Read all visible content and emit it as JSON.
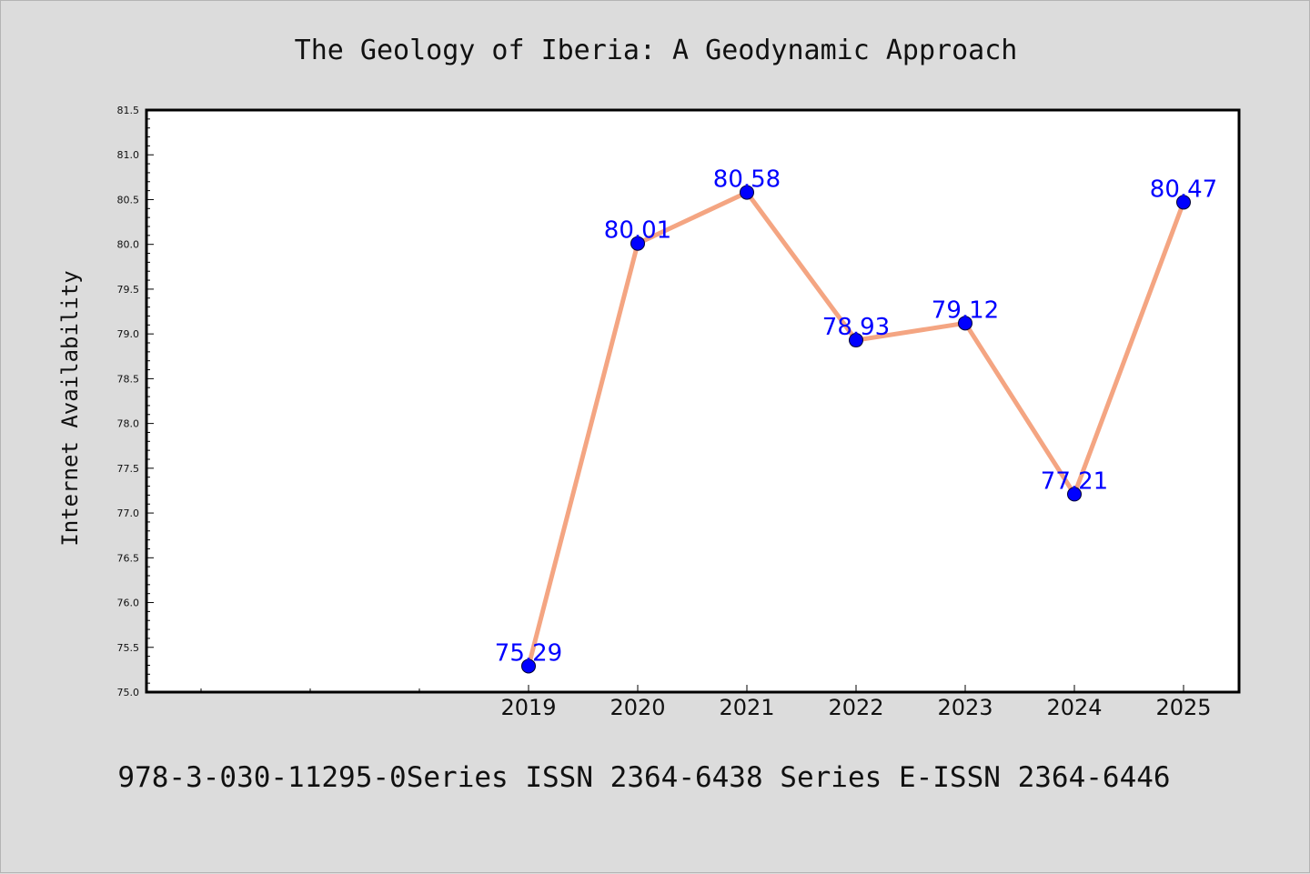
{
  "chart_data": {
    "type": "line",
    "title": "The Geology of Iberia: A Geodynamic Approach",
    "ylabel": "Internet Availability",
    "xlabel": "",
    "footer": "978-3-030-11295-0Series ISSN 2364-6438 Series E-ISSN 2364-6446",
    "x": [
      "2019",
      "2020",
      "2021",
      "2022",
      "2023",
      "2024",
      "2025"
    ],
    "series": [
      {
        "values": [
          75.29,
          80.01,
          80.58,
          78.93,
          79.12,
          77.21,
          80.47
        ],
        "labels": [
          "75.29",
          "80.01",
          "80.58",
          "78.93",
          "79.12",
          "77.21",
          "80.47"
        ]
      }
    ],
    "ylim": [
      75.0,
      81.5
    ],
    "yticks": [
      "75.0",
      "75.5",
      "76.0",
      "76.5",
      "77.0",
      "77.5",
      "78.0",
      "78.5",
      "79.0",
      "79.5",
      "80.0",
      "80.5",
      "81.0",
      "81.5"
    ],
    "grid": false,
    "line_color": "#f4a582",
    "marker_color": "#0000ff",
    "label_color": "#0000ff",
    "background_color": "#dcdcdc",
    "plot_background_color": "#ffffff"
  }
}
